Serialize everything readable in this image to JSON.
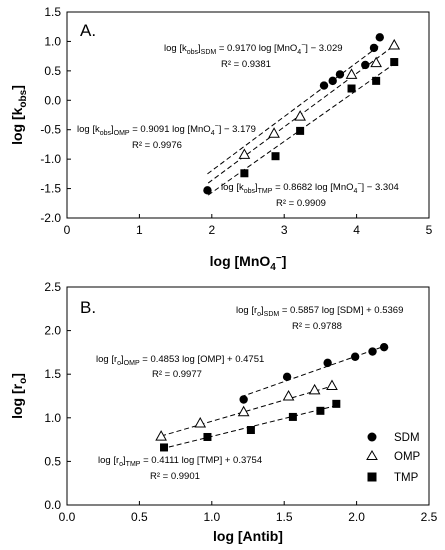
{
  "chart_data": [
    {
      "type": "scatter",
      "panel_label": "A.",
      "xlabel": "log [MnO4−]",
      "ylabel": "log [kobs]",
      "xlim": [
        0,
        5
      ],
      "ylim": [
        -2.0,
        1.5
      ],
      "xticks": [
        0,
        1,
        2,
        3,
        4,
        5
      ],
      "yticks": [
        -2.0,
        -1.5,
        -1.0,
        -0.5,
        0.0,
        0.5,
        1.0,
        1.5
      ],
      "xtick_labels": [
        "0",
        "1",
        "2",
        "3",
        "4",
        "5"
      ],
      "ytick_labels": [
        "-2.0",
        "-1.5",
        "-1.0",
        "-0.5",
        "0.0",
        "0.5",
        "1.0",
        "1.5"
      ],
      "series": [
        {
          "name": "SDM",
          "marker": "circle",
          "x": [
            1.94,
            3.55,
            3.67,
            3.77,
            4.12,
            4.24,
            4.32
          ],
          "y": [
            -1.53,
            0.25,
            0.33,
            0.44,
            0.6,
            0.89,
            1.07
          ],
          "fit": {
            "slope": 0.917,
            "intercept": -3.029,
            "x_range": [
              1.94,
              4.32
            ]
          }
        },
        {
          "name": "OMP",
          "marker": "triangle",
          "x": [
            2.45,
            2.86,
            3.22,
            3.93,
            4.27,
            4.52
          ],
          "y": [
            -0.92,
            -0.56,
            -0.27,
            0.44,
            0.64,
            0.94
          ],
          "fit": {
            "slope": 0.9091,
            "intercept": -3.179,
            "x_range": [
              1.95,
              4.52
            ]
          }
        },
        {
          "name": "TMP",
          "marker": "square",
          "x": [
            2.45,
            2.88,
            3.22,
            3.93,
            4.27,
            4.52
          ],
          "y": [
            -1.24,
            -0.95,
            -0.52,
            0.2,
            0.33,
            0.65
          ],
          "fit": {
            "slope": 0.8682,
            "intercept": -3.304,
            "x_range": [
              1.95,
              4.52
            ]
          }
        }
      ],
      "annotations": [
        {
          "series": "SDM",
          "equation_lhs": "log [k",
          "equation_lhs_sub": "obs",
          "equation_lhs_end": "]",
          "equation_lhs_sub2": "SDM",
          "equation_rhs": " = 0.9170 log [MnO",
          "equation_rhs_sub": "4",
          "equation_rhs_sup": "−",
          "equation_rhs_end": "] − 3.029",
          "r2": "R² = 0.9381"
        },
        {
          "series": "OMP",
          "equation_lhs": "log [k",
          "equation_lhs_sub": "obs",
          "equation_lhs_end": "]",
          "equation_lhs_sub2": "OMP",
          "equation_rhs": " = 0.9091 log [MnO",
          "equation_rhs_sub": "4",
          "equation_rhs_sup": "−",
          "equation_rhs_end": "] − 3.179",
          "r2": "R² = 0.9976"
        },
        {
          "series": "TMP",
          "equation_lhs": "log [k",
          "equation_lhs_sub": "obs",
          "equation_lhs_end": "]",
          "equation_lhs_sub2": "TMP",
          "equation_rhs": " = 0.8682 log [MnO",
          "equation_rhs_sub": "4",
          "equation_rhs_sup": "−",
          "equation_rhs_end": "] − 3.304",
          "r2": "R² = 0.9909"
        }
      ]
    },
    {
      "type": "scatter",
      "panel_label": "B.",
      "xlabel": "log [Antib]",
      "ylabel": "log [ro]",
      "xlim": [
        0,
        2.5
      ],
      "ylim": [
        0,
        2.5
      ],
      "xticks": [
        0,
        0.5,
        1.0,
        1.5,
        2.0,
        2.5
      ],
      "yticks": [
        0,
        0.5,
        1.0,
        1.5,
        2.0,
        2.5
      ],
      "xtick_labels": [
        "0.0",
        "0.5",
        "1.0",
        "1.5",
        "2.0",
        "2.5"
      ],
      "ytick_labels": [
        "0.0",
        "0.5",
        "1.0",
        "1.5",
        "2.0",
        "2.5"
      ],
      "series": [
        {
          "name": "SDM",
          "marker": "circle",
          "x": [
            1.22,
            1.52,
            1.8,
            1.99,
            2.11,
            2.19
          ],
          "y": [
            1.21,
            1.47,
            1.63,
            1.7,
            1.76,
            1.81
          ],
          "fit": {
            "slope": 0.5857,
            "intercept": 0.5369,
            "x_range": [
              1.2,
              2.2
            ]
          }
        },
        {
          "name": "OMP",
          "marker": "triangle",
          "x": [
            0.65,
            0.92,
            1.22,
            1.53,
            1.71,
            1.83
          ],
          "y": [
            0.79,
            0.94,
            1.07,
            1.25,
            1.32,
            1.37
          ],
          "fit": {
            "slope": 0.4853,
            "intercept": 0.4751,
            "x_range": [
              0.65,
              1.85
            ]
          }
        },
        {
          "name": "TMP",
          "marker": "square",
          "x": [
            0.67,
            0.97,
            1.27,
            1.56,
            1.75,
            1.86
          ],
          "y": [
            0.66,
            0.78,
            0.86,
            1.01,
            1.08,
            1.16
          ],
          "fit": {
            "slope": 0.4111,
            "intercept": 0.3754,
            "x_range": [
              0.65,
              1.87
            ]
          }
        }
      ],
      "annotations": [
        {
          "series": "SDM",
          "lhs": "log [r",
          "lhs_sub": "o",
          "lhs_end": "]",
          "lhs_sub2": "SDM",
          "rhs": " = 0.5857 log [SDM] + 0.5369",
          "r2": "R² = 0.9788"
        },
        {
          "series": "OMP",
          "lhs": "log [r",
          "lhs_sub": "o",
          "lhs_end": "]",
          "lhs_sub2": "OMP",
          "rhs": " = 0.4853 log [OMP] + 0.4751",
          "r2": "R² = 0.9977"
        },
        {
          "series": "TMP",
          "lhs": "log [r",
          "lhs_sub": "o",
          "lhs_end": "]",
          "lhs_sub2": "TMP",
          "rhs": " = 0.4111 log [TMP] + 0.3754",
          "r2": "R² = 0.9901"
        }
      ],
      "legend": {
        "placement": "lower-right",
        "items": [
          "SDM",
          "OMP",
          "TMP"
        ]
      }
    }
  ]
}
